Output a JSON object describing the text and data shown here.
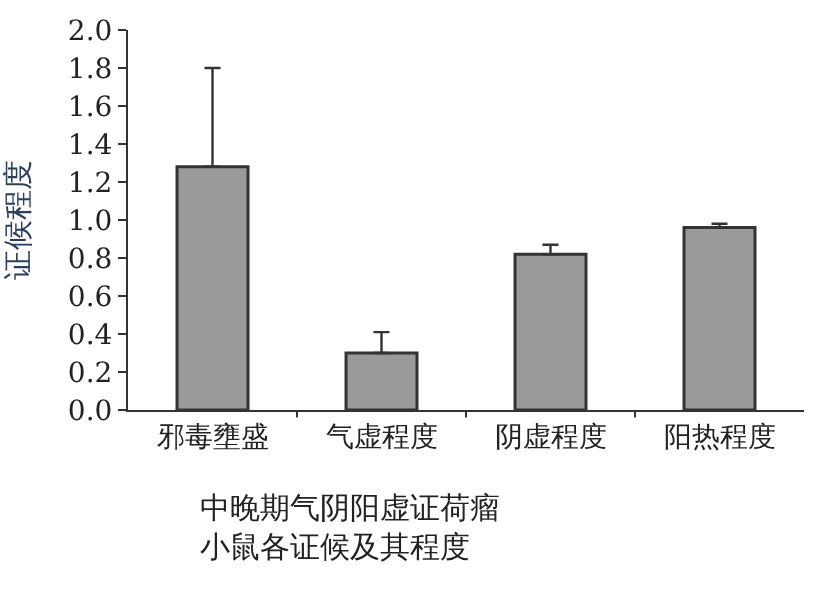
{
  "chart_data": {
    "type": "bar",
    "ylabel": "证候程度",
    "categories": [
      "邪毒壅盛",
      "气虚程度",
      "阴虚程度",
      "阳热程度"
    ],
    "values": [
      1.28,
      0.3,
      0.82,
      0.96
    ],
    "errors": [
      [
        1.28,
        1.8
      ],
      [
        0.3,
        0.41
      ],
      [
        0.82,
        0.87
      ],
      [
        0.96,
        0.98
      ]
    ],
    "color": "#9a9a9a",
    "ylim": [
      0,
      2.0
    ],
    "yticks": [
      {
        "value": 0,
        "label": "0.0"
      },
      {
        "value": 0.2,
        "label": "0.2"
      },
      {
        "value": 0.4,
        "label": "0.4"
      },
      {
        "value": 0.6,
        "label": "0.6"
      },
      {
        "value": 0.8,
        "label": "0.8"
      },
      {
        "value": 1.0,
        "label": "1.0"
      },
      {
        "value": 1.2,
        "label": "1.2"
      },
      {
        "value": 1.4,
        "label": "1.4"
      },
      {
        "value": 1.6,
        "label": "1.6"
      },
      {
        "value": 1.8,
        "label": "1.8"
      },
      {
        "value": 2.0,
        "label": "2.0"
      }
    ],
    "annotations": [
      "中晚期气阴阳虚证荷瘤小鼠各证候及其程度"
    ]
  }
}
